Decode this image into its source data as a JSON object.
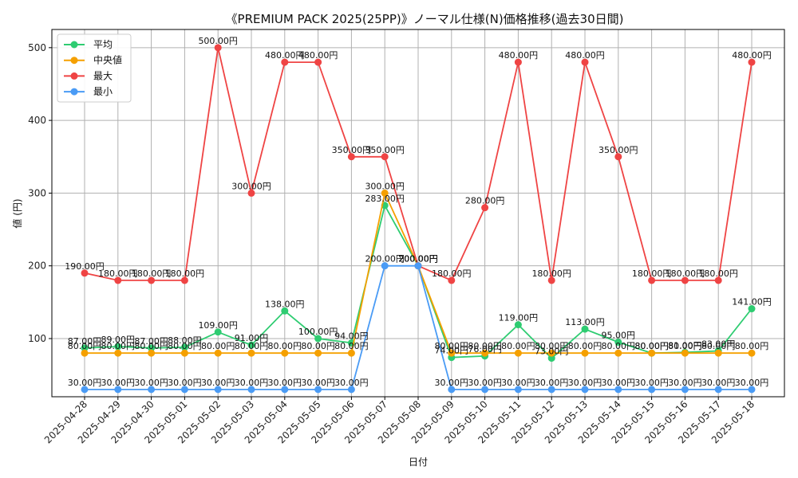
{
  "chart_data": {
    "type": "line",
    "title": "《PREMIUM PACK 2025(25PP)》ノーマル仕様(N)価格推移(過去30日間)",
    "xlabel": "日付",
    "ylabel": "値 (円)",
    "ylim": [
      20,
      525
    ],
    "yticks": [
      100,
      200,
      300,
      400,
      500
    ],
    "grid": true,
    "legend_position": "top-left",
    "value_suffix": "円",
    "categories": [
      "2025-04-28",
      "2025-04-29",
      "2025-04-30",
      "2025-05-01",
      "2025-05-02",
      "2025-05-03",
      "2025-05-04",
      "2025-05-05",
      "2025-05-06",
      "2025-05-07",
      "2025-05-08",
      "2025-05-09",
      "2025-05-10",
      "2025-05-11",
      "2025-05-12",
      "2025-05-13",
      "2025-05-14",
      "2025-05-15",
      "2025-05-16",
      "2025-05-17",
      "2025-05-18"
    ],
    "series": [
      {
        "name": "平均",
        "color": "#2ecc71",
        "values": [
          87,
          89,
          87,
          88,
          109,
          91,
          138,
          100,
          94,
          283,
          200,
          74,
          76,
          119,
          73,
          113,
          95,
          80,
          81,
          83,
          141
        ]
      },
      {
        "name": "中央値",
        "color": "#f5a000",
        "values": [
          80,
          80,
          80,
          80,
          80,
          80,
          80,
          80,
          80,
          300,
          200,
          80,
          80,
          80,
          80,
          80,
          80,
          80,
          80,
          80,
          80
        ]
      },
      {
        "name": "最大",
        "color": "#ef4444",
        "values": [
          190,
          180,
          180,
          180,
          500,
          300,
          480,
          480,
          350,
          350,
          200,
          180,
          280,
          480,
          180,
          480,
          350,
          180,
          180,
          180,
          480
        ]
      },
      {
        "name": "最小",
        "color": "#4a9bf5",
        "values": [
          30,
          30,
          30,
          30,
          30,
          30,
          30,
          30,
          30,
          200,
          200,
          30,
          30,
          30,
          30,
          30,
          30,
          30,
          30,
          30,
          30
        ]
      }
    ]
  }
}
